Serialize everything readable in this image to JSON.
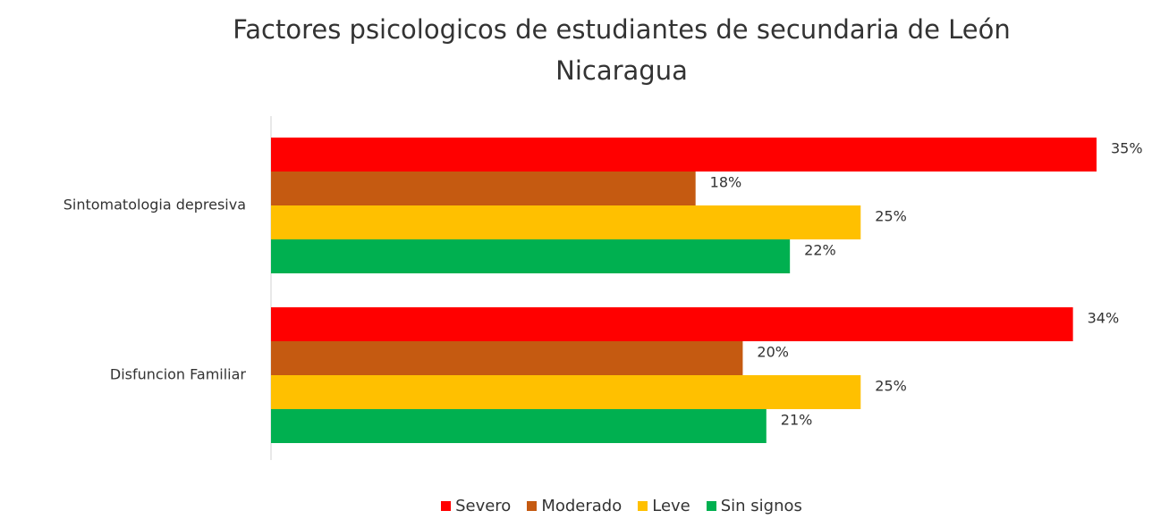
{
  "chart_data": {
    "type": "hbar",
    "title": "Factores psicologicos de estudiantes de secundaria de León Nicaragua",
    "categories": [
      "Sintomatologia depresiva",
      "Disfuncion Familiar"
    ],
    "series": [
      {
        "name": "Severo",
        "color": "#ff0000",
        "values": [
          35,
          34
        ],
        "value_labels": [
          "35%",
          "34%"
        ]
      },
      {
        "name": "Moderado",
        "color": "#c55a11",
        "values": [
          18,
          20
        ],
        "value_labels": [
          "18%",
          "20%"
        ]
      },
      {
        "name": "Leve",
        "color": "#ffc000",
        "values": [
          25,
          25
        ],
        "value_labels": [
          "25%",
          "25%"
        ]
      },
      {
        "name": "Sin signos",
        "color": "#00b050",
        "values": [
          22,
          21
        ],
        "value_labels": [
          "22%",
          "21%"
        ]
      }
    ],
    "legend": "bottom"
  }
}
